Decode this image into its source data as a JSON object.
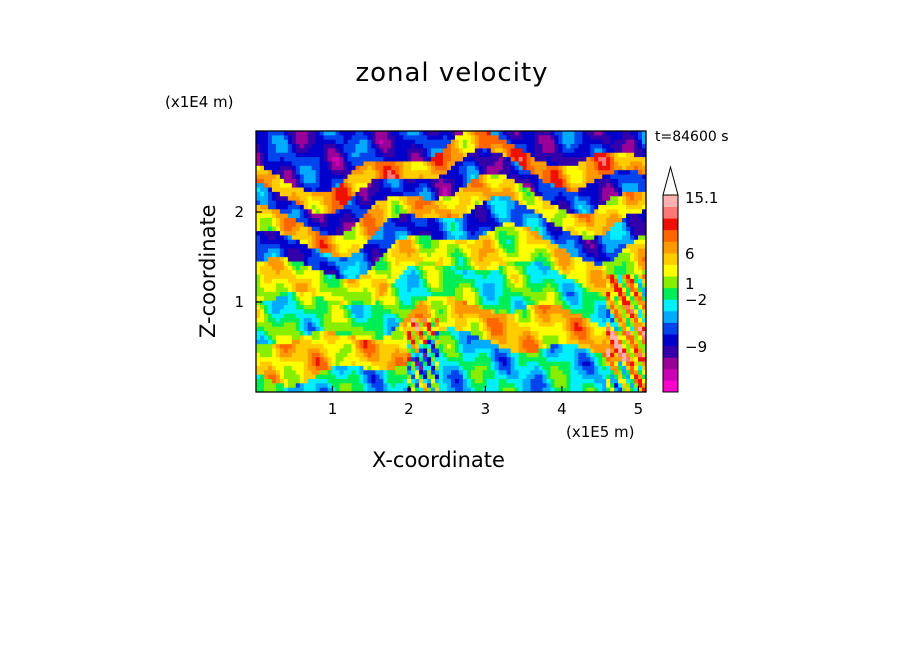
{
  "chart_data": {
    "type": "heatmap",
    "title": "zonal velocity",
    "xlabel": "X-coordinate",
    "ylabel": "Z-coordinate",
    "x_multiplier": "(x1E5 m)",
    "y_multiplier": "(x1E4 m)",
    "annotation": "t=84600 s",
    "xlim": [
      0,
      5.1
    ],
    "ylim": [
      0,
      2.9
    ],
    "x_ticks": [
      1,
      2,
      3,
      4,
      5
    ],
    "x_tick_labels": [
      "1",
      "2",
      "3",
      "4",
      "5"
    ],
    "y_ticks": [
      1,
      2
    ],
    "y_tick_labels": [
      "1",
      "2"
    ],
    "colorbar": {
      "tick_values": [
        15.1,
        6,
        1,
        -2,
        -9
      ],
      "tick_labels": [
        "15.1",
        "6",
        "1",
        "−2",
        "−9"
      ],
      "levels": [
        {
          "color": "#ff00cc"
        },
        {
          "color": "#cc00b4"
        },
        {
          "color": "#990099"
        },
        {
          "color": "#3300aa"
        },
        {
          "color": "#0000cc"
        },
        {
          "color": "#0044ee"
        },
        {
          "color": "#00aaff"
        },
        {
          "color": "#00eeff"
        },
        {
          "color": "#00ee55"
        },
        {
          "color": "#88ee00"
        },
        {
          "color": "#ffff00"
        },
        {
          "color": "#ffcc00"
        },
        {
          "color": "#ff9900"
        },
        {
          "color": "#ff6600"
        },
        {
          "color": "#ee1100"
        },
        {
          "color": "#ff7777"
        },
        {
          "color": "#ffb0b0"
        },
        {
          "color": "#ffffff"
        }
      ]
    },
    "bands": [
      {
        "z": 2.55,
        "level": 4
      },
      {
        "z": 2.35,
        "level": 12
      },
      {
        "z": 2.1,
        "level": 4
      },
      {
        "z": 1.85,
        "level": 11
      },
      {
        "z": 1.6,
        "level": 5
      },
      {
        "z": 1.3,
        "level": 10
      },
      {
        "z": 0.9,
        "level": 8
      },
      {
        "z": 0.45,
        "level": 11
      },
      {
        "z": 0.1,
        "level": 7
      }
    ]
  }
}
